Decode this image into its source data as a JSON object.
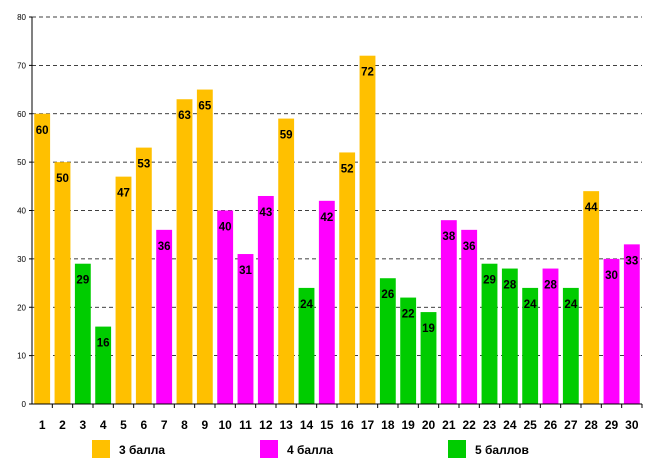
{
  "chart_data": {
    "type": "bar",
    "title": "",
    "xlabel": "",
    "ylabel": "",
    "ylim": [
      0,
      80
    ],
    "y_ticks": [
      0,
      10,
      20,
      30,
      40,
      50,
      60,
      70,
      80
    ],
    "grid": true,
    "legend_position": "bottom",
    "categories": [
      "1",
      "2",
      "3",
      "4",
      "5",
      "6",
      "7",
      "8",
      "9",
      "10",
      "11",
      "12",
      "13",
      "14",
      "15",
      "16",
      "17",
      "18",
      "19",
      "20",
      "21",
      "22",
      "23",
      "24",
      "25",
      "26",
      "27",
      "28",
      "29",
      "30"
    ],
    "values": [
      60,
      50,
      29,
      16,
      47,
      53,
      36,
      63,
      65,
      40,
      31,
      43,
      59,
      24,
      42,
      52,
      72,
      26,
      22,
      19,
      38,
      36,
      29,
      28,
      24,
      28,
      24,
      44,
      30,
      33
    ],
    "bar_groups": [
      3,
      3,
      5,
      5,
      3,
      3,
      4,
      3,
      3,
      4,
      4,
      4,
      3,
      5,
      4,
      3,
      3,
      5,
      5,
      5,
      4,
      4,
      5,
      5,
      5,
      4,
      5,
      3,
      4,
      4
    ],
    "data_labels": [
      "60",
      "50",
      "29",
      "16",
      "47",
      "53",
      "36",
      "63",
      "65",
      "40",
      "31",
      "43",
      "59",
      "24",
      "42",
      "52",
      "72",
      "26",
      "22",
      "19",
      "38",
      "36",
      "29",
      "28",
      "24",
      "28",
      "24",
      "44",
      "30",
      "33"
    ],
    "legend": [
      {
        "group": 3,
        "label": "3 балла",
        "color": "#FFC000"
      },
      {
        "group": 4,
        "label": "4 балла",
        "color": "#FF00FF"
      },
      {
        "group": 5,
        "label": "5 баллов",
        "color": "#00CC00"
      }
    ]
  }
}
